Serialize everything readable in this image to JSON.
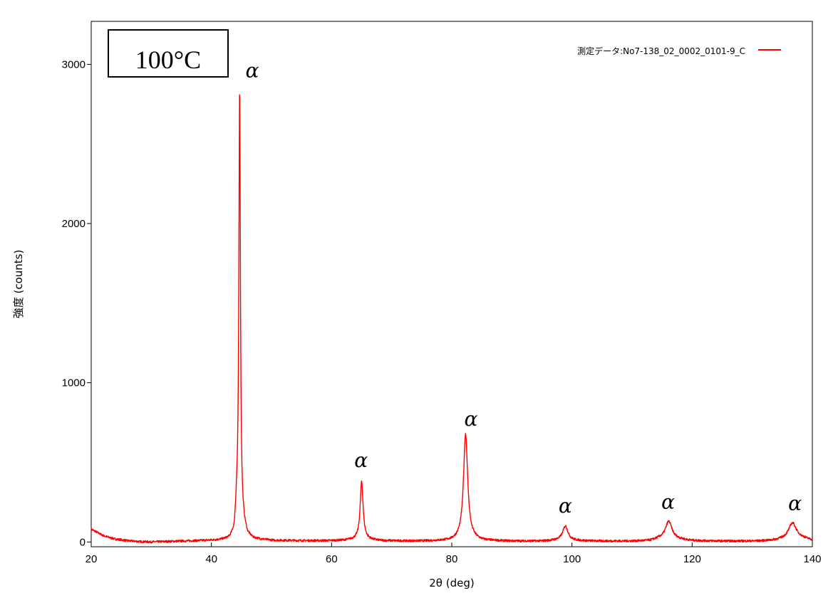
{
  "chart_data": {
    "type": "line",
    "title": "",
    "inset_label": "100°C",
    "xlabel": "2θ (deg)",
    "ylabel": "強度 (counts)",
    "xlim": [
      20,
      140
    ],
    "ylim": [
      -30,
      3270
    ],
    "x_ticks": [
      20,
      40,
      60,
      80,
      100,
      120,
      140
    ],
    "y_ticks": [
      0,
      1000,
      2000,
      3000
    ],
    "grid": false,
    "legend_position": "top-right",
    "series": [
      {
        "name": "測定データ:No7-138_02_0002_0101-9_C",
        "color": "#ff0000",
        "baseline": [
          [
            20,
            80
          ],
          [
            21,
            60
          ],
          [
            22,
            40
          ],
          [
            23,
            28
          ],
          [
            24,
            18
          ],
          [
            26,
            8
          ],
          [
            28,
            2
          ],
          [
            30,
            0
          ],
          [
            32,
            2
          ],
          [
            35,
            5
          ],
          [
            38,
            8
          ],
          [
            40,
            10
          ],
          [
            42,
            14
          ],
          [
            43,
            20
          ],
          [
            43.8,
            50
          ],
          [
            44.2,
            200
          ],
          [
            46,
            40
          ],
          [
            47,
            20
          ],
          [
            50,
            10
          ],
          [
            55,
            8
          ],
          [
            60,
            8
          ],
          [
            62,
            10
          ],
          [
            64,
            15
          ],
          [
            66,
            14
          ],
          [
            68,
            8
          ],
          [
            72,
            6
          ],
          [
            76,
            6
          ],
          [
            80,
            8
          ],
          [
            81,
            14
          ],
          [
            83.5,
            16
          ],
          [
            85,
            8
          ],
          [
            90,
            5
          ],
          [
            95,
            5
          ],
          [
            97.5,
            10
          ],
          [
            100,
            8
          ],
          [
            105,
            5
          ],
          [
            110,
            5
          ],
          [
            113,
            8
          ],
          [
            114.5,
            20
          ],
          [
            118,
            15
          ],
          [
            120,
            8
          ],
          [
            125,
            5
          ],
          [
            130,
            5
          ],
          [
            133,
            8
          ],
          [
            135,
            15
          ],
          [
            138.5,
            20
          ],
          [
            140,
            10
          ]
        ],
        "peaks": [
          {
            "x": 44.7,
            "y": 2850
          },
          {
            "x": 65.0,
            "y": 380
          },
          {
            "x": 82.3,
            "y": 680
          },
          {
            "x": 98.9,
            "y": 100
          },
          {
            "x": 116.1,
            "y": 130
          },
          {
            "x": 136.7,
            "y": 120
          }
        ]
      }
    ],
    "annotations": [
      {
        "text": "α",
        "x": 46.8,
        "y": 2920
      },
      {
        "text": "α",
        "x": 64.9,
        "y": 470
      },
      {
        "text": "α",
        "x": 83.2,
        "y": 730
      },
      {
        "text": "α",
        "x": 98.9,
        "y": 185
      },
      {
        "text": "α",
        "x": 116.0,
        "y": 210
      },
      {
        "text": "α",
        "x": 137.1,
        "y": 200
      }
    ]
  }
}
